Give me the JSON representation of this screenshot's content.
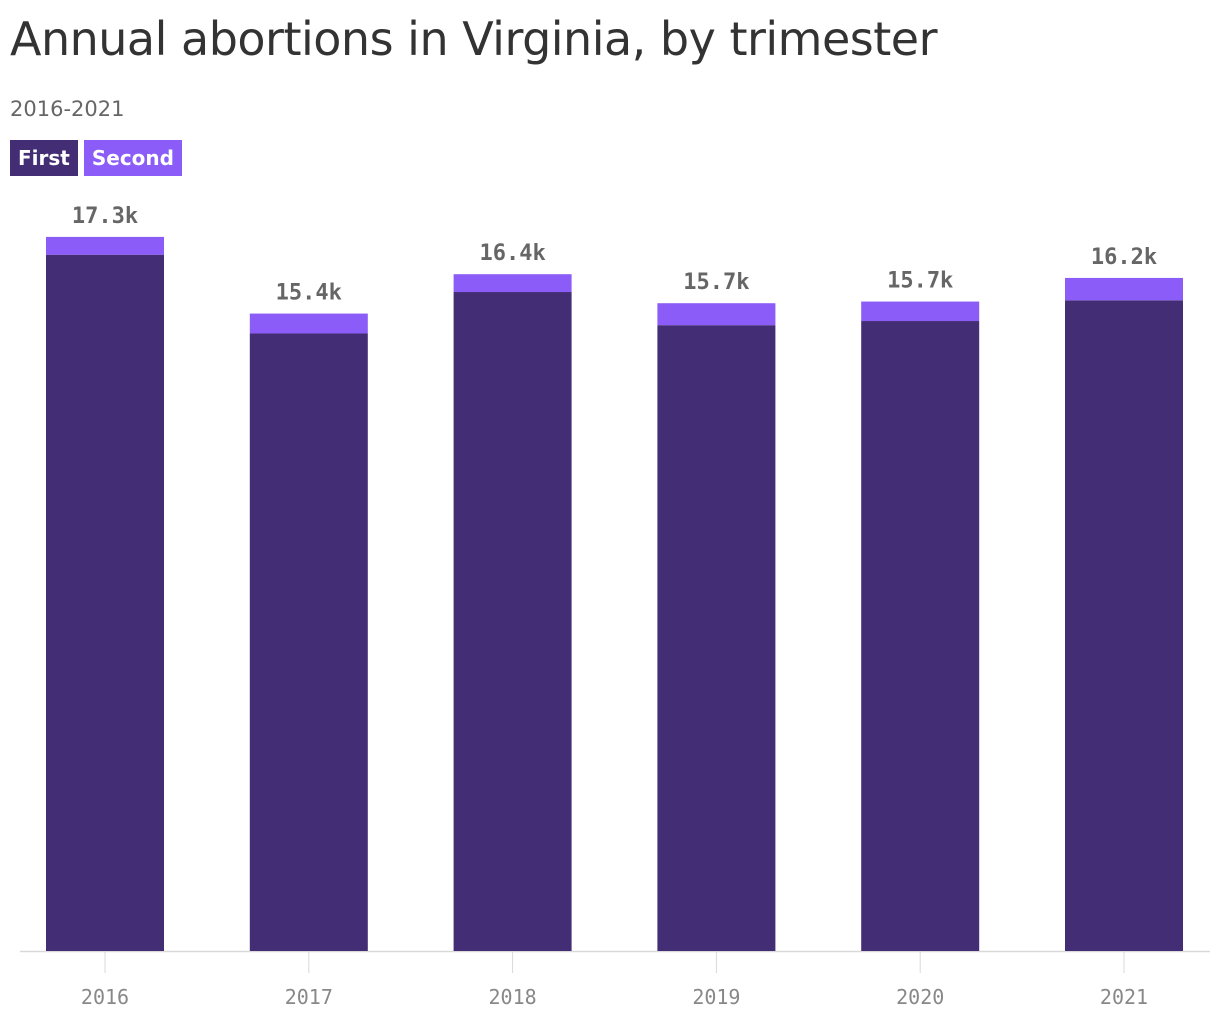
{
  "header": {
    "title": "Annual abortions in Virginia, by trimester",
    "subtitle": "2016-2021"
  },
  "colors": {
    "first": "#432d74",
    "second": "#8b5cf7",
    "axis": "#d9d9d9"
  },
  "legend": [
    {
      "label": "First",
      "color": "#432d74"
    },
    {
      "label": "Second",
      "color": "#8b5cf7"
    }
  ],
  "chart_data": {
    "type": "bar",
    "stacked": true,
    "categories": [
      "2016",
      "2017",
      "2018",
      "2019",
      "2020",
      "2021"
    ],
    "series": [
      {
        "name": "First",
        "values": [
          16800,
          14900,
          15900,
          15100,
          15200,
          15700
        ]
      },
      {
        "name": "Second",
        "values": [
          430,
          480,
          430,
          530,
          470,
          540
        ]
      }
    ],
    "totals_labels": [
      "17.3k",
      "15.4k",
      "16.4k",
      "15.7k",
      "15.7k",
      "16.2k"
    ],
    "title": "Annual abortions in Virginia, by trimester",
    "subtitle": "2016-2021",
    "xlabel": "",
    "ylabel": "",
    "ylim": [
      0,
      17300
    ],
    "grid": false,
    "legend_position": "top-left"
  }
}
